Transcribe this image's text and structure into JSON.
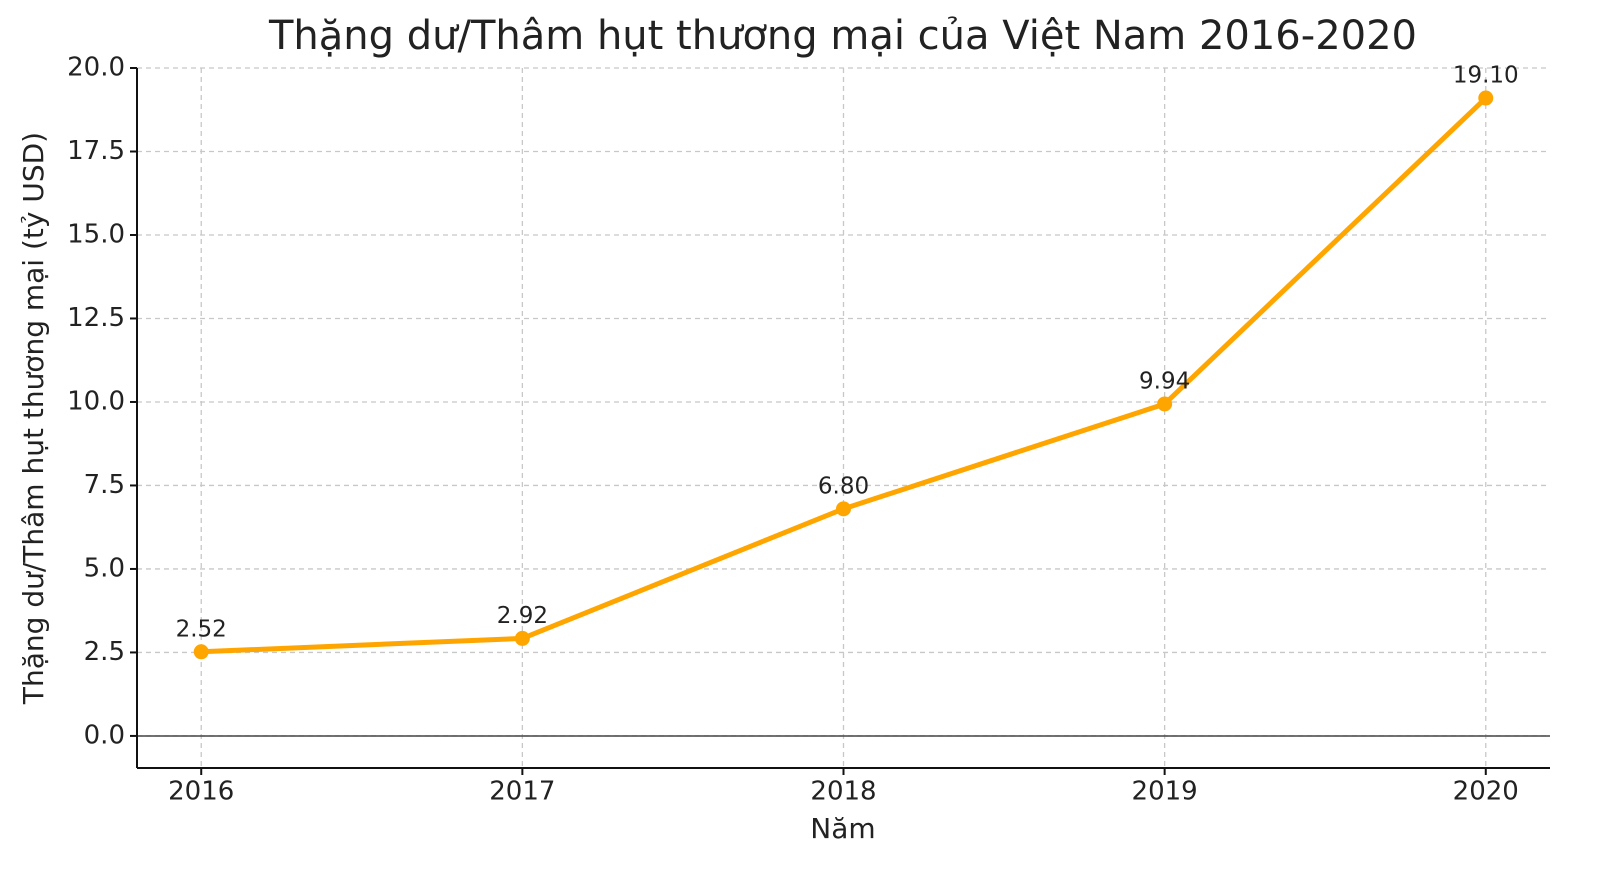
{
  "chart_data": {
    "type": "line",
    "title": "Thặng dư/Thâm hụt thương mại của Việt Nam 2016-2020",
    "x_label": "Năm",
    "y_label": "Thặng dư/Thâm hụt thương mại (tỷ USD)",
    "x": [
      2016,
      2017,
      2018,
      2019,
      2020
    ],
    "series": [
      {
        "name": "Thặng dư/Thâm hụt thương mại",
        "color": "#ffa500",
        "values": [
          2.52,
          2.92,
          6.8,
          9.94,
          19.1
        ],
        "value_labels": [
          "2.52",
          "2.92",
          "6.80",
          "9.94",
          "19.10"
        ]
      }
    ],
    "xlim": [
      2015.8,
      2020.2
    ],
    "xticks": [
      2016,
      2017,
      2018,
      2019,
      2020
    ],
    "ylim": [
      -0.96,
      20
    ],
    "yticks": [
      {
        "value": 0,
        "label": "0.0"
      },
      2.5,
      {
        "value": 5,
        "label": "5.0"
      },
      7.5,
      {
        "value": 10,
        "label": "10.0"
      },
      12.5,
      {
        "value": 15,
        "label": "15.0"
      },
      17.5,
      {
        "value": 20,
        "label": "20.0"
      }
    ],
    "grid": true,
    "zero_line": true
  }
}
